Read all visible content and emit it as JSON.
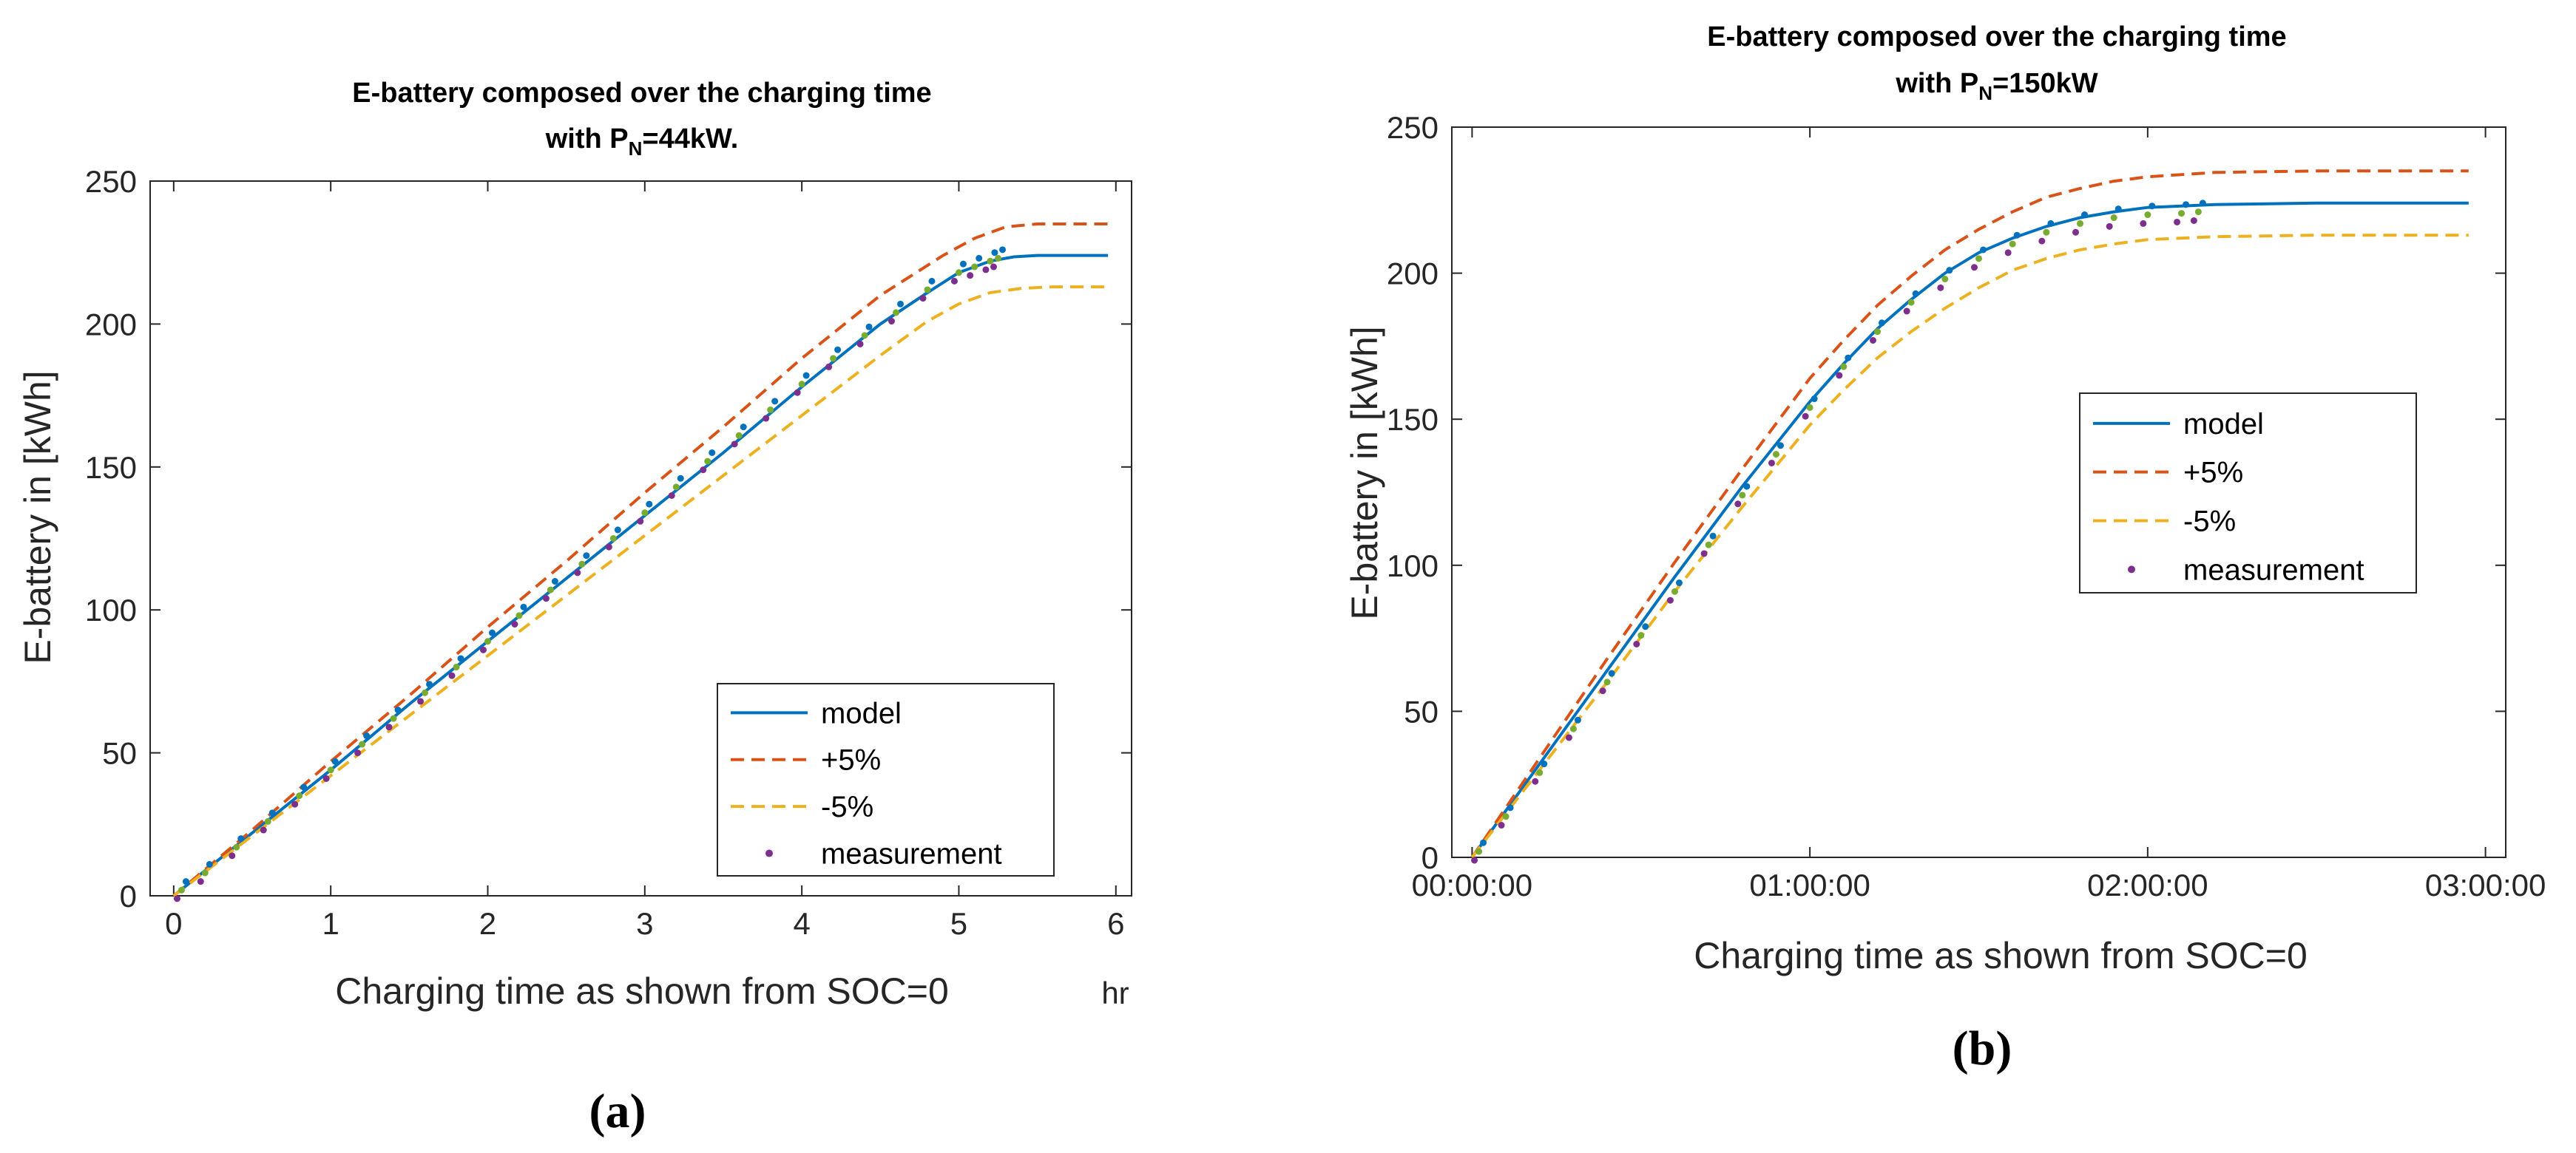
{
  "chart_data": [
    {
      "type": "line",
      "panel_label": "(a)",
      "title": "E-battery composed over the charging time",
      "title_line2": {
        "prefix": "with P",
        "subscript": "N",
        "suffix": "=44kW."
      },
      "xlabel": "Charging time as shown from SOC=0",
      "xunit": "hr",
      "ylabel": "E-battery in [kWh]",
      "xlim": [
        -0.15,
        6.1
      ],
      "ylim": [
        0,
        250
      ],
      "xticks": [
        0,
        1,
        2,
        3,
        4,
        5,
        6
      ],
      "xtick_labels": [
        "0",
        "1",
        "2",
        "3",
        "4",
        "5",
        "6"
      ],
      "yticks": [
        0,
        50,
        100,
        150,
        200,
        250
      ],
      "ytick_labels": [
        "0",
        "50",
        "100",
        "150",
        "200",
        "250"
      ],
      "legend_position": "bottom-right",
      "legend": [
        "model",
        "+5%",
        "-5%",
        "measurement"
      ],
      "series": [
        {
          "name": "model",
          "style": "solid",
          "color": "#0072BD",
          "x": [
            0,
            0.5,
            1,
            1.5,
            2,
            2.5,
            3,
            3.5,
            4,
            4.5,
            4.8,
            5.0,
            5.2,
            5.35,
            5.5,
            5.7,
            5.95
          ],
          "y": [
            0,
            22,
            44,
            67,
            89,
            111,
            133,
            155,
            178,
            200,
            211,
            218,
            222,
            223.5,
            224,
            224,
            224
          ]
        },
        {
          "name": "+5%",
          "style": "dashed",
          "color": "#D95319",
          "x": [
            0,
            0.5,
            1,
            1.5,
            2,
            2.5,
            3,
            3.5,
            4,
            4.5,
            4.9,
            5.1,
            5.3,
            5.5,
            5.7,
            5.95
          ],
          "y": [
            0,
            23,
            47,
            70,
            94,
            117,
            141,
            164,
            188,
            210,
            224,
            230,
            234,
            235,
            235,
            235
          ]
        },
        {
          "name": "-5%",
          "style": "dashed",
          "color": "#EDB120",
          "x": [
            0,
            0.5,
            1,
            1.5,
            2,
            2.5,
            3,
            3.5,
            4,
            4.5,
            4.8,
            5.0,
            5.2,
            5.4,
            5.6,
            5.95
          ],
          "y": [
            0,
            21,
            42,
            63,
            84,
            105,
            126,
            147,
            168,
            189,
            201,
            207,
            211,
            212.5,
            213,
            213
          ]
        },
        {
          "name": "measurement",
          "style": "dots",
          "color": "#7E2F8E",
          "x": [
            0.05,
            0.2,
            0.4,
            0.6,
            0.8,
            1.0,
            1.2,
            1.4,
            1.6,
            1.8,
            2.0,
            2.2,
            2.4,
            2.6,
            2.8,
            3.0,
            3.2,
            3.4,
            3.6,
            3.8,
            4.0,
            4.2,
            4.4,
            4.6,
            4.8,
            5.0,
            5.1,
            5.2,
            5.25
          ],
          "y": [
            2,
            8,
            17,
            26,
            35,
            44,
            53,
            62,
            71,
            80,
            89,
            98,
            107,
            116,
            125,
            134,
            143,
            152,
            161,
            170,
            179,
            188,
            196,
            204,
            212,
            218,
            220,
            222,
            223
          ]
        }
      ]
    },
    {
      "type": "line",
      "panel_label": "(b)",
      "title": "E-battery composed over the charging time",
      "title_line2": {
        "prefix": "with P",
        "subscript": "N",
        "suffix": "=150kW"
      },
      "xlabel": "Charging time as shown from SOC=0",
      "ylabel": "E-battery in [kWh]",
      "xlim": [
        -0.06,
        3.06
      ],
      "ylim": [
        0,
        250
      ],
      "xticks": [
        0,
        1,
        2,
        3
      ],
      "xtick_labels": [
        "00:00:00",
        "01:00:00",
        "02:00:00",
        "03:00:00"
      ],
      "yticks": [
        0,
        50,
        100,
        150,
        200,
        250
      ],
      "ytick_labels": [
        "0",
        "50",
        "100",
        "150",
        "200",
        "250"
      ],
      "legend_position": "center-right",
      "legend": [
        "model",
        "+5%",
        "-5%",
        "measurement"
      ],
      "series": [
        {
          "name": "model",
          "style": "solid",
          "color": "#0072BD",
          "x": [
            0,
            0.2,
            0.4,
            0.6,
            0.8,
            1.0,
            1.1,
            1.2,
            1.3,
            1.4,
            1.5,
            1.6,
            1.7,
            1.8,
            1.9,
            2.0,
            2.2,
            2.5,
            2.95
          ],
          "y": [
            0,
            32,
            64,
            96,
            127,
            156,
            169,
            181,
            191,
            200,
            207,
            212,
            216,
            219,
            221,
            222.5,
            223.5,
            224,
            224
          ]
        },
        {
          "name": "+5%",
          "style": "dashed",
          "color": "#D95319",
          "x": [
            0,
            0.2,
            0.4,
            0.6,
            0.8,
            1.0,
            1.1,
            1.2,
            1.3,
            1.4,
            1.5,
            1.6,
            1.7,
            1.8,
            1.9,
            2.0,
            2.2,
            2.5,
            2.95
          ],
          "y": [
            0,
            34,
            68,
            101,
            133,
            164,
            177,
            189,
            199,
            208,
            215,
            221,
            226,
            229,
            231.5,
            233,
            234.5,
            235,
            235
          ]
        },
        {
          "name": "-5%",
          "style": "dashed",
          "color": "#EDB120",
          "x": [
            0,
            0.2,
            0.4,
            0.6,
            0.8,
            1.0,
            1.1,
            1.2,
            1.3,
            1.4,
            1.5,
            1.6,
            1.7,
            1.8,
            1.9,
            2.0,
            2.2,
            2.5,
            2.95
          ],
          "y": [
            0,
            30,
            60,
            91,
            120,
            148,
            160,
            171,
            180,
            188,
            195,
            201,
            205,
            208,
            210,
            211.5,
            212.5,
            213,
            213
          ]
        },
        {
          "name": "measurement",
          "style": "dots",
          "color": "#7E2F8E",
          "x": [
            0.02,
            0.1,
            0.2,
            0.3,
            0.4,
            0.5,
            0.6,
            0.7,
            0.8,
            0.9,
            1.0,
            1.1,
            1.2,
            1.3,
            1.4,
            1.5,
            1.6,
            1.7,
            1.8,
            1.9,
            2.0,
            2.1,
            2.15
          ],
          "y": [
            2,
            14,
            29,
            44,
            60,
            76,
            91,
            107,
            124,
            138,
            154,
            168,
            180,
            190,
            198,
            205,
            210,
            214,
            217,
            219,
            220,
            220.5,
            221
          ]
        }
      ]
    }
  ]
}
